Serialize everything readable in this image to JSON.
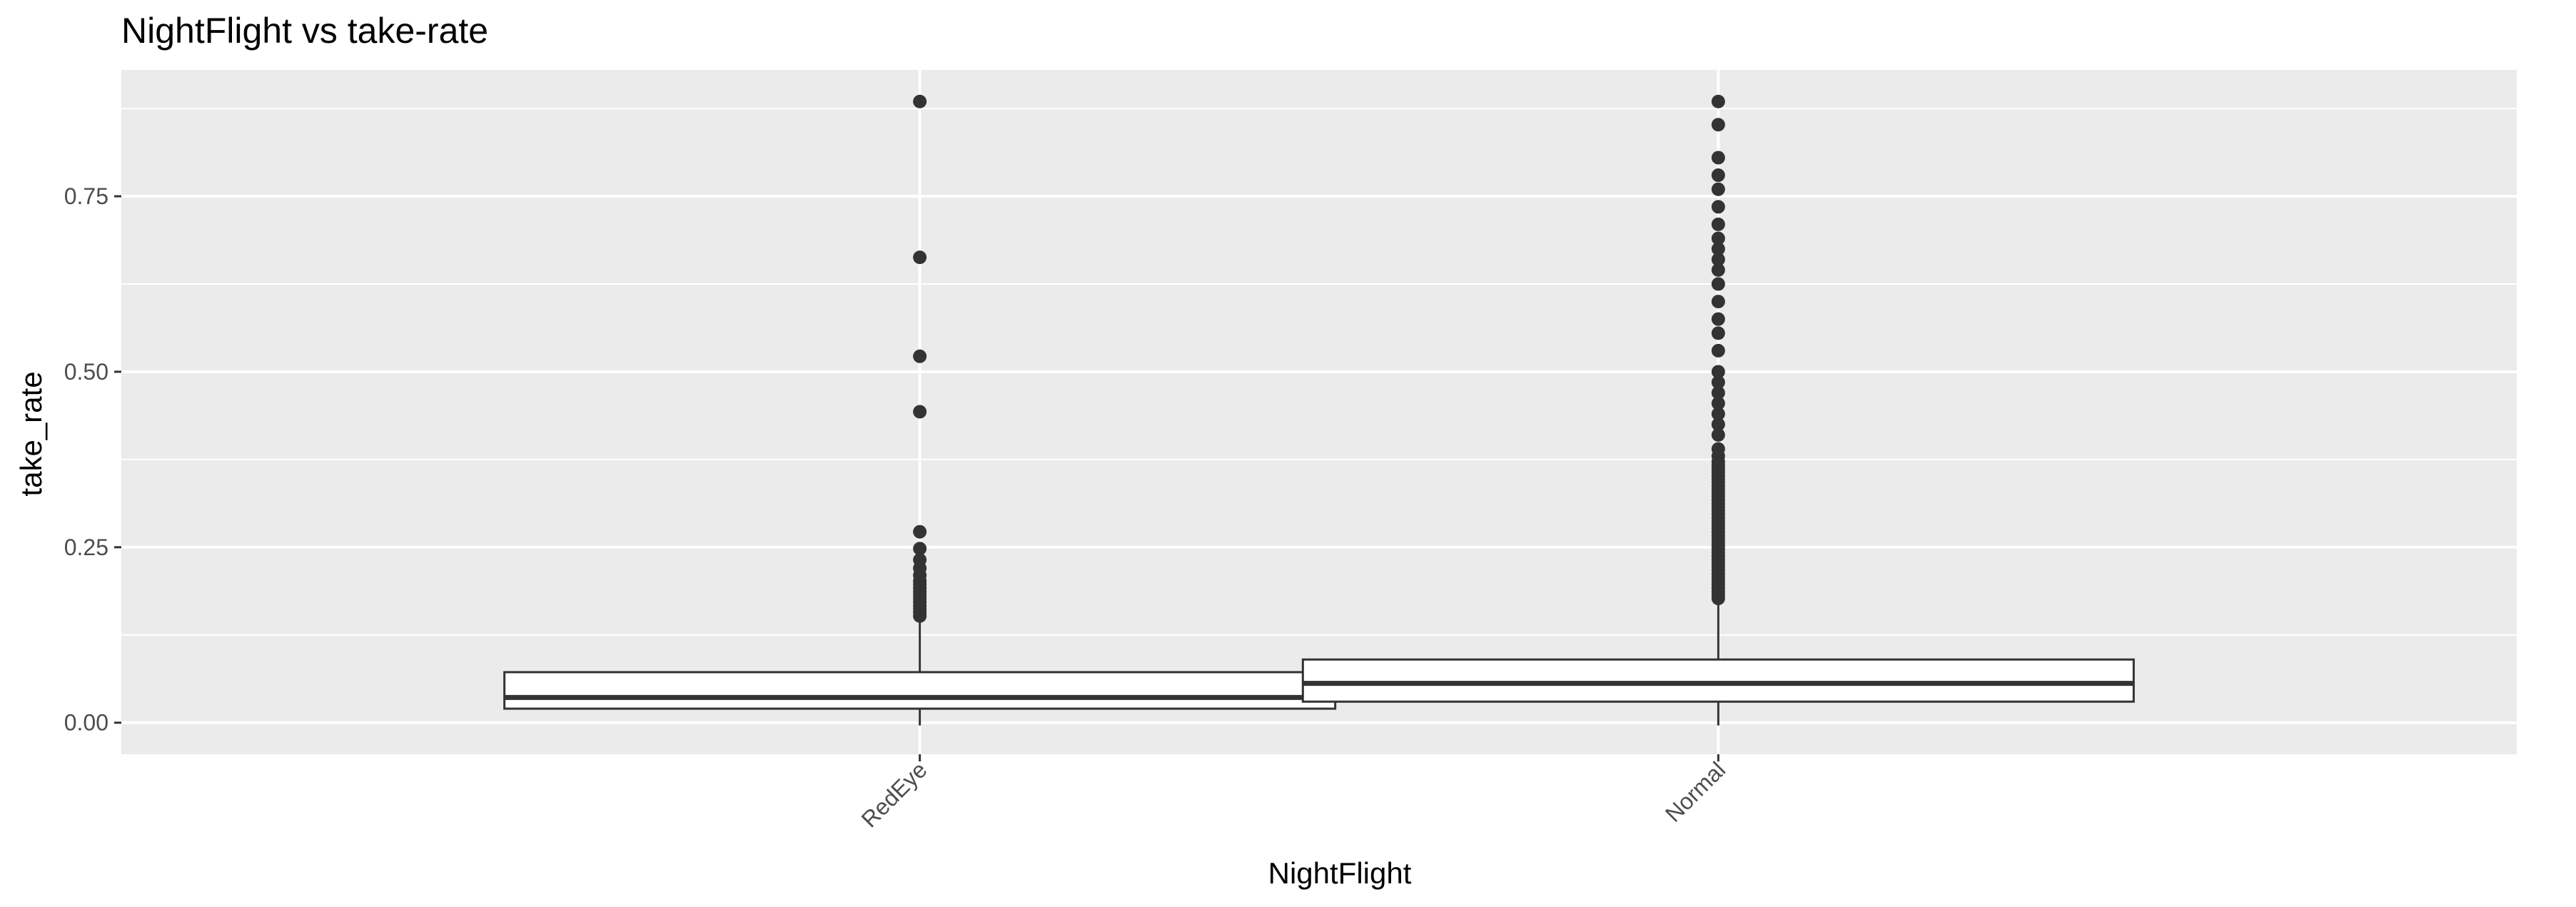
{
  "chart_data": {
    "type": "box",
    "title": "NightFlight vs take-rate",
    "xlabel": "NightFlight",
    "ylabel": "take_rate",
    "categories": [
      "RedEye",
      "Normal"
    ],
    "ylim": [
      -0.045,
      0.93
    ],
    "yticks": [
      0.0,
      0.25,
      0.5,
      0.75
    ],
    "ytick_labels": [
      "0.00",
      "0.25",
      "0.50",
      "0.75"
    ],
    "grid": true,
    "legend": "none",
    "colors": {
      "panel": "#ebebeb",
      "grid": "#ffffff",
      "box_fill": "#ffffff",
      "box_line": "#333333",
      "outlier": "#333333"
    },
    "boxes": [
      {
        "category": "RedEye",
        "whisker_low": -0.004,
        "q1": 0.02,
        "median": 0.036,
        "q3": 0.072,
        "whisker_high": 0.148,
        "outliers": [
          0.152,
          0.157,
          0.162,
          0.167,
          0.172,
          0.177,
          0.182,
          0.187,
          0.192,
          0.197,
          0.202,
          0.21,
          0.22,
          0.232,
          0.248,
          0.272,
          0.443,
          0.522,
          0.663,
          0.885
        ]
      },
      {
        "category": "Normal",
        "whisker_low": -0.004,
        "q1": 0.03,
        "median": 0.056,
        "q3": 0.09,
        "whisker_high": 0.173,
        "outliers": [
          0.177,
          0.182,
          0.187,
          0.192,
          0.197,
          0.202,
          0.207,
          0.212,
          0.217,
          0.222,
          0.227,
          0.232,
          0.237,
          0.242,
          0.247,
          0.252,
          0.257,
          0.262,
          0.267,
          0.272,
          0.277,
          0.282,
          0.287,
          0.292,
          0.297,
          0.302,
          0.307,
          0.312,
          0.317,
          0.322,
          0.327,
          0.332,
          0.337,
          0.342,
          0.347,
          0.352,
          0.357,
          0.362,
          0.367,
          0.372,
          0.38,
          0.39,
          0.41,
          0.425,
          0.44,
          0.455,
          0.47,
          0.485,
          0.5,
          0.53,
          0.555,
          0.575,
          0.6,
          0.625,
          0.645,
          0.66,
          0.675,
          0.69,
          0.71,
          0.735,
          0.76,
          0.78,
          0.805,
          0.852,
          0.885
        ]
      }
    ]
  }
}
